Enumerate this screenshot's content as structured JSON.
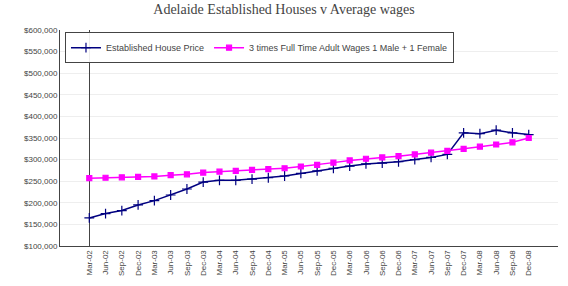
{
  "chart_data": {
    "type": "line",
    "title": "Adelaide Established Houses v Average wages",
    "categories": [
      "Mar-02",
      "Jun-02",
      "Sep-02",
      "Dec-02",
      "Mar-03",
      "Jun-03",
      "Sep-03",
      "Dec-03",
      "Mar-04",
      "Jun-04",
      "Sep-04",
      "Dec-04",
      "Mar-05",
      "Jun-05",
      "Sep-05",
      "Dec-05",
      "Mar-06",
      "Jun-06",
      "Sep-06",
      "Dec-06",
      "Mar-07",
      "Jun-07",
      "Sep-07",
      "Dec-07",
      "Mar-08",
      "Jun-08",
      "Sep-08",
      "Dec-08"
    ],
    "series": [
      {
        "name": "Established House Price",
        "color": "#000080",
        "marker": "cross",
        "values": [
          165000,
          175000,
          182000,
          195000,
          205000,
          218000,
          232000,
          248000,
          252000,
          252000,
          255000,
          258000,
          262000,
          268000,
          274000,
          280000,
          285000,
          290000,
          292000,
          295000,
          300000,
          305000,
          312000,
          362000,
          360000,
          368000,
          362000,
          358000
        ]
      },
      {
        "name": "3 times Full Time Adult Wages 1 Male + 1 Female",
        "color": "#FF00FF",
        "marker": "square",
        "values": [
          257000,
          258000,
          259000,
          260000,
          261000,
          264000,
          266000,
          270000,
          272000,
          274000,
          276000,
          278000,
          280000,
          284000,
          288000,
          293000,
          298000,
          302000,
          305000,
          308000,
          312000,
          316000,
          320000,
          325000,
          330000,
          335000,
          340000,
          350000
        ]
      }
    ],
    "ylim": [
      100000,
      600000
    ],
    "yticks": [
      {
        "value": 100000,
        "label": "$100,000"
      },
      {
        "value": 150000,
        "label": "$150,000"
      },
      {
        "value": 200000,
        "label": "$200,000"
      },
      {
        "value": 250000,
        "label": "$250,000"
      },
      {
        "value": 300000,
        "label": "$300,000"
      },
      {
        "value": 350000,
        "label": "$350,000"
      },
      {
        "value": 400000,
        "label": "$400,000"
      },
      {
        "value": 450000,
        "label": "$450,000"
      },
      {
        "value": 500000,
        "label": "$500,000"
      },
      {
        "value": 550000,
        "label": "$550,000"
      },
      {
        "value": 600000,
        "label": "$600,000"
      }
    ],
    "grid": true,
    "legend": "upper left"
  }
}
